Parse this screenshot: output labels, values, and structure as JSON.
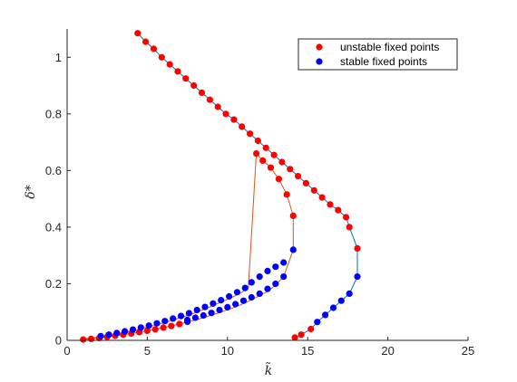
{
  "chart_data": {
    "type": "scatter",
    "title": "",
    "xlabel": "k̃",
    "ylabel": "δ*",
    "xlim": [
      0,
      25
    ],
    "ylim": [
      0,
      1.1
    ],
    "xticks": [
      "0",
      "5",
      "10",
      "15",
      "20",
      "25"
    ],
    "yticks": [
      "0",
      "0.2",
      "0.4",
      "0.6",
      "0.8",
      "1"
    ],
    "grid": false,
    "legend_position": "top-right",
    "colors": {
      "unstable": "#ff0000",
      "stable": "#0000ff",
      "line_blue": "#0072bd",
      "line_orange": "#d95319",
      "axis": "#262626"
    },
    "legend": [
      {
        "label": "unstable fixed points",
        "color": "#ff0000"
      },
      {
        "label": "stable fixed points",
        "color": "#0000ff"
      }
    ],
    "lines": [
      {
        "color": "#0072bd",
        "points": [
          [
            4.4,
            1.085
          ],
          [
            4.9,
            1.055
          ],
          [
            5.4,
            1.03
          ],
          [
            5.9,
            1.0
          ],
          [
            6.4,
            0.975
          ],
          [
            6.9,
            0.95
          ],
          [
            7.4,
            0.925
          ],
          [
            7.9,
            0.9
          ],
          [
            8.4,
            0.875
          ],
          [
            8.9,
            0.85
          ],
          [
            9.4,
            0.825
          ],
          [
            9.9,
            0.8
          ],
          [
            10.4,
            0.78
          ],
          [
            10.9,
            0.755
          ],
          [
            11.4,
            0.73
          ],
          [
            11.9,
            0.705
          ],
          [
            12.4,
            0.68
          ],
          [
            12.9,
            0.655
          ],
          [
            13.4,
            0.63
          ],
          [
            13.9,
            0.605
          ],
          [
            14.4,
            0.58
          ],
          [
            14.9,
            0.555
          ],
          [
            15.4,
            0.53
          ],
          [
            15.9,
            0.505
          ],
          [
            16.4,
            0.48
          ],
          [
            16.9,
            0.46
          ],
          [
            17.4,
            0.435
          ],
          [
            17.6,
            0.4
          ],
          [
            18.1,
            0.325
          ],
          [
            18.1,
            0.225
          ],
          [
            17.6,
            0.165
          ],
          [
            17.1,
            0.14
          ],
          [
            16.6,
            0.115
          ],
          [
            16.1,
            0.09
          ],
          [
            15.6,
            0.065
          ],
          [
            15.2,
            0.04
          ],
          [
            14.6,
            0.02
          ],
          [
            14.2,
            0.01
          ]
        ]
      },
      {
        "color": "#d95319",
        "points": [
          [
            1.0,
            0.003
          ],
          [
            1.5,
            0.005
          ],
          [
            2.0,
            0.008
          ],
          [
            2.5,
            0.012
          ],
          [
            3.0,
            0.016
          ],
          [
            3.5,
            0.02
          ],
          [
            4.0,
            0.024
          ],
          [
            4.5,
            0.029
          ],
          [
            5.0,
            0.034
          ],
          [
            5.5,
            0.039
          ],
          [
            6.0,
            0.045
          ],
          [
            6.5,
            0.051
          ],
          [
            7.0,
            0.058
          ],
          [
            7.5,
            0.065
          ],
          [
            8.0,
            0.072
          ],
          [
            8.5,
            0.08
          ],
          [
            9.0,
            0.089
          ],
          [
            9.5,
            0.098
          ],
          [
            10.0,
            0.108
          ],
          [
            10.5,
            0.118
          ],
          [
            11.0,
            0.13
          ],
          [
            11.5,
            0.143
          ],
          [
            12.0,
            0.158
          ],
          [
            12.5,
            0.173
          ],
          [
            13.0,
            0.195
          ],
          [
            13.5,
            0.225
          ],
          [
            14.1,
            0.32
          ],
          [
            14.1,
            0.44
          ],
          [
            13.7,
            0.515
          ],
          [
            13.2,
            0.57
          ],
          [
            12.7,
            0.61
          ],
          [
            12.2,
            0.635
          ],
          [
            11.8,
            0.66
          ],
          [
            11.3,
            0.185
          ],
          [
            10.9,
            0.17
          ],
          [
            10.4,
            0.155
          ],
          [
            9.9,
            0.142
          ],
          [
            9.4,
            0.13
          ],
          [
            8.9,
            0.118
          ],
          [
            8.4,
            0.107
          ],
          [
            7.9,
            0.096
          ],
          [
            7.4,
            0.086
          ],
          [
            6.9,
            0.077
          ],
          [
            6.4,
            0.068
          ],
          [
            5.9,
            0.06
          ],
          [
            5.4,
            0.052
          ],
          [
            4.9,
            0.045
          ],
          [
            4.4,
            0.038
          ],
          [
            3.9,
            0.032
          ],
          [
            3.4,
            0.026
          ],
          [
            2.9,
            0.02
          ],
          [
            2.4,
            0.015
          ],
          [
            1.9,
            0.011
          ],
          [
            1.4,
            0.008
          ],
          [
            1.0,
            0.005
          ]
        ]
      }
    ],
    "series": [
      {
        "name": "unstable fixed points",
        "color": "#ff0000",
        "points": [
          [
            4.4,
            1.085
          ],
          [
            4.9,
            1.055
          ],
          [
            5.4,
            1.03
          ],
          [
            5.9,
            1.0
          ],
          [
            6.4,
            0.975
          ],
          [
            6.9,
            0.95
          ],
          [
            7.4,
            0.925
          ],
          [
            7.9,
            0.9
          ],
          [
            8.4,
            0.875
          ],
          [
            8.9,
            0.85
          ],
          [
            9.4,
            0.825
          ],
          [
            9.9,
            0.8
          ],
          [
            10.4,
            0.78
          ],
          [
            10.9,
            0.755
          ],
          [
            11.4,
            0.73
          ],
          [
            11.9,
            0.705
          ],
          [
            12.4,
            0.68
          ],
          [
            12.9,
            0.655
          ],
          [
            13.4,
            0.63
          ],
          [
            13.9,
            0.605
          ],
          [
            14.4,
            0.58
          ],
          [
            14.9,
            0.555
          ],
          [
            15.4,
            0.53
          ],
          [
            15.9,
            0.505
          ],
          [
            16.4,
            0.48
          ],
          [
            16.9,
            0.46
          ],
          [
            17.4,
            0.435
          ],
          [
            17.6,
            0.4
          ],
          [
            18.1,
            0.325
          ],
          [
            11.8,
            0.66
          ],
          [
            12.2,
            0.635
          ],
          [
            12.7,
            0.61
          ],
          [
            13.2,
            0.57
          ],
          [
            13.7,
            0.515
          ],
          [
            14.1,
            0.44
          ],
          [
            1.0,
            0.003
          ],
          [
            1.5,
            0.005
          ],
          [
            2.0,
            0.008
          ],
          [
            2.5,
            0.012
          ],
          [
            3.0,
            0.016
          ],
          [
            3.5,
            0.02
          ],
          [
            4.0,
            0.024
          ],
          [
            4.5,
            0.029
          ],
          [
            5.0,
            0.034
          ],
          [
            5.5,
            0.039
          ],
          [
            6.0,
            0.045
          ],
          [
            6.5,
            0.051
          ],
          [
            7.0,
            0.058
          ],
          [
            14.2,
            0.01
          ],
          [
            14.6,
            0.02
          ],
          [
            15.2,
            0.04
          ]
        ]
      },
      {
        "name": "stable fixed points",
        "color": "#0000ff",
        "points": [
          [
            18.1,
            0.225
          ],
          [
            17.6,
            0.165
          ],
          [
            17.1,
            0.14
          ],
          [
            16.6,
            0.115
          ],
          [
            16.1,
            0.09
          ],
          [
            15.6,
            0.065
          ],
          [
            14.1,
            0.32
          ],
          [
            13.5,
            0.275
          ],
          [
            13.0,
            0.26
          ],
          [
            12.5,
            0.245
          ],
          [
            12.0,
            0.225
          ],
          [
            11.5,
            0.205
          ],
          [
            11.1,
            0.185
          ],
          [
            10.6,
            0.17
          ],
          [
            10.1,
            0.155
          ],
          [
            9.6,
            0.142
          ],
          [
            9.1,
            0.13
          ],
          [
            8.6,
            0.118
          ],
          [
            8.1,
            0.107
          ],
          [
            7.6,
            0.096
          ],
          [
            7.1,
            0.086
          ],
          [
            6.6,
            0.077
          ],
          [
            6.1,
            0.068
          ],
          [
            5.6,
            0.06
          ],
          [
            5.1,
            0.052
          ],
          [
            4.6,
            0.045
          ],
          [
            4.1,
            0.038
          ],
          [
            3.6,
            0.032
          ],
          [
            3.1,
            0.026
          ],
          [
            2.6,
            0.02
          ],
          [
            2.1,
            0.015
          ],
          [
            13.5,
            0.225
          ],
          [
            13.0,
            0.2
          ],
          [
            12.5,
            0.182
          ],
          [
            12.0,
            0.165
          ],
          [
            11.5,
            0.152
          ],
          [
            11.0,
            0.14
          ],
          [
            10.5,
            0.128
          ],
          [
            10.0,
            0.117
          ],
          [
            9.5,
            0.107
          ],
          [
            9.0,
            0.097
          ],
          [
            8.5,
            0.088
          ],
          [
            8.0,
            0.08
          ],
          [
            7.5,
            0.072
          ],
          [
            7.5,
            0.066
          ]
        ]
      }
    ]
  }
}
